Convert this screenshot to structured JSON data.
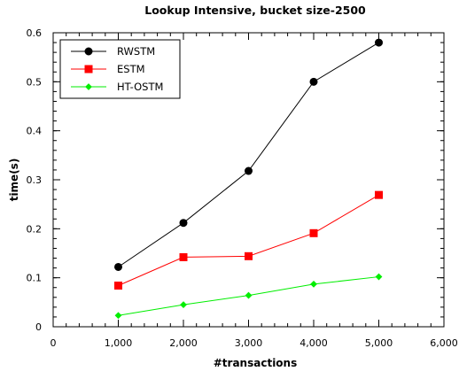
{
  "chart_data": {
    "type": "line",
    "title": "Lookup Intensive, bucket size-2500",
    "xlabel": "#transactions",
    "ylabel": "time(s)",
    "xlim": [
      0,
      6000
    ],
    "ylim": [
      0,
      0.6
    ],
    "x_ticks": [
      0,
      1000,
      2000,
      3000,
      4000,
      5000,
      6000
    ],
    "x_tick_labels": [
      "0",
      "1,000",
      "2,000",
      "3,000",
      "4,000",
      "5,000",
      "6,000"
    ],
    "y_ticks": [
      0,
      0.1,
      0.2,
      0.3,
      0.4,
      0.5,
      0.6
    ],
    "y_tick_labels": [
      "0",
      "0.1",
      "0.2",
      "0.3",
      "0.4",
      "0.5",
      "0.6"
    ],
    "grid": false,
    "legend_position": "top-left",
    "x": [
      1000,
      2000,
      3000,
      4000,
      5000
    ],
    "series": [
      {
        "name": "RWSTM",
        "color": "#000000",
        "marker": "circle",
        "values": [
          0.122,
          0.212,
          0.318,
          0.5,
          0.58
        ]
      },
      {
        "name": "ESTM",
        "color": "#ff0000",
        "marker": "square",
        "values": [
          0.084,
          0.142,
          0.144,
          0.191,
          0.269
        ]
      },
      {
        "name": "HT-OSTM",
        "color": "#00ee00",
        "marker": "diamond",
        "values": [
          0.023,
          0.045,
          0.064,
          0.087,
          0.102
        ]
      }
    ]
  }
}
